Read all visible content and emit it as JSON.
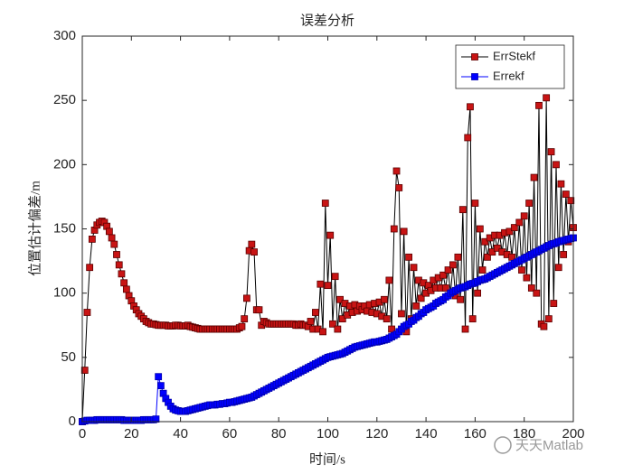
{
  "chart_data": {
    "type": "line",
    "title": "误差分析",
    "xlabel": "时间/s",
    "ylabel": "位置估计偏差/m",
    "xlim": [
      0,
      200
    ],
    "ylim": [
      0,
      300
    ],
    "xticks": [
      0,
      20,
      40,
      60,
      80,
      100,
      120,
      140,
      160,
      180,
      200
    ],
    "yticks": [
      0,
      50,
      100,
      150,
      200,
      250,
      300
    ],
    "legend": "northeast",
    "marker": "square",
    "watermark": "天天Matlab",
    "x": [
      0,
      1,
      2,
      3,
      4,
      5,
      6,
      7,
      8,
      9,
      10,
      11,
      12,
      13,
      14,
      15,
      16,
      17,
      18,
      19,
      20,
      21,
      22,
      23,
      24,
      25,
      26,
      27,
      28,
      29,
      30,
      31,
      32,
      33,
      34,
      35,
      36,
      37,
      38,
      39,
      40,
      41,
      42,
      43,
      44,
      45,
      46,
      47,
      48,
      49,
      50,
      51,
      52,
      53,
      54,
      55,
      56,
      57,
      58,
      59,
      60,
      61,
      62,
      63,
      64,
      65,
      66,
      67,
      68,
      69,
      70,
      71,
      72,
      73,
      74,
      75,
      76,
      77,
      78,
      79,
      80,
      81,
      82,
      83,
      84,
      85,
      86,
      87,
      88,
      89,
      90,
      91,
      92,
      93,
      94,
      95,
      96,
      97,
      98,
      99,
      100,
      101,
      102,
      103,
      104,
      105,
      106,
      107,
      108,
      109,
      110,
      111,
      112,
      113,
      114,
      115,
      116,
      117,
      118,
      119,
      120,
      121,
      122,
      123,
      124,
      125,
      126,
      127,
      128,
      129,
      130,
      131,
      132,
      133,
      134,
      135,
      136,
      137,
      138,
      139,
      140,
      141,
      142,
      143,
      144,
      145,
      146,
      147,
      148,
      149,
      150,
      151,
      152,
      153,
      154,
      155,
      156,
      157,
      158,
      159,
      160,
      161,
      162,
      163,
      164,
      165,
      166,
      167,
      168,
      169,
      170,
      171,
      172,
      173,
      174,
      175,
      176,
      177,
      178,
      179,
      180,
      181,
      182,
      183,
      184,
      185,
      186,
      187,
      188,
      189,
      190,
      191,
      192,
      193,
      194,
      195,
      196,
      197,
      198,
      199,
      200
    ],
    "series": [
      {
        "name": "ErrStekf",
        "color": "#c81414",
        "line_color": "#000000",
        "edge_color": "#5a0000",
        "values": [
          0,
          40,
          85,
          120,
          142,
          149,
          153,
          155,
          156,
          155,
          152,
          148,
          143,
          138,
          130,
          122,
          115,
          108,
          103,
          98,
          94,
          90,
          87,
          84,
          82,
          80,
          78,
          77,
          76,
          76,
          75.5,
          75,
          75,
          75,
          75,
          74.5,
          74.5,
          74.5,
          75,
          75,
          74.5,
          74.5,
          74.5,
          75,
          74,
          73.5,
          73,
          72.5,
          72,
          72,
          72,
          72,
          72,
          72,
          72,
          72,
          72,
          72,
          72,
          72,
          72,
          72,
          72,
          72,
          73,
          74,
          80,
          96,
          133,
          138,
          132,
          87,
          87,
          75,
          78,
          77,
          76,
          76,
          76,
          76,
          76,
          76,
          76,
          76,
          76,
          76,
          76,
          75,
          75,
          76,
          75,
          75,
          74,
          78,
          72,
          85,
          72,
          107,
          70,
          170,
          106,
          145,
          76,
          113,
          72,
          95,
          80,
          92,
          83,
          90,
          85,
          91,
          86,
          90,
          87,
          90,
          86,
          91,
          85,
          92,
          84,
          93,
          82,
          95,
          80,
          110,
          72,
          150,
          195,
          182,
          84,
          148,
          70,
          128,
          80,
          120,
          90,
          110,
          96,
          108,
          100,
          106,
          102,
          110,
          104,
          112,
          104,
          114,
          104,
          118,
          100,
          122,
          98,
          128,
          95,
          165,
          72,
          221,
          245,
          80,
          170,
          100,
          150,
          118,
          140,
          128,
          143,
          132,
          145,
          135,
          145,
          132,
          147,
          130,
          148,
          128,
          151,
          124,
          155,
          118,
          160,
          112,
          170,
          104,
          190,
          100,
          246,
          76,
          74,
          252,
          80,
          210,
          92,
          200,
          120,
          185,
          130,
          177,
          140,
          172,
          151
        ]
      },
      {
        "name": "Errekf",
        "color": "#0000ff",
        "line_color": "#0000ff",
        "edge_color": "#0000b0",
        "values": [
          0,
          0.5,
          1,
          1,
          1,
          1,
          1.5,
          1.5,
          1.5,
          1.5,
          1.5,
          1.5,
          1.5,
          1.5,
          1.5,
          1.5,
          1.5,
          1,
          1,
          1,
          1,
          1,
          1,
          1,
          1,
          1.5,
          1.5,
          1.5,
          1.5,
          1.5,
          2,
          35,
          28,
          22,
          18,
          15,
          12,
          10,
          9,
          8.5,
          8,
          8,
          8,
          8.5,
          9,
          9.5,
          10,
          10.5,
          11,
          11.5,
          12,
          12.5,
          13,
          13,
          13,
          13.5,
          13.5,
          14,
          14,
          14.5,
          15,
          15,
          15.5,
          16,
          16.5,
          17,
          17.5,
          18,
          18.5,
          19,
          20,
          21,
          22,
          23,
          24,
          25,
          26,
          27,
          28,
          29,
          30,
          31,
          32,
          33,
          34,
          35,
          36,
          37,
          38,
          39,
          40,
          41,
          42,
          43,
          44,
          45,
          46,
          47,
          48,
          49,
          50,
          50.5,
          51,
          51.5,
          52,
          52.5,
          53,
          54,
          55,
          56,
          57,
          58,
          58.5,
          59,
          59.5,
          60,
          60.5,
          61,
          61.5,
          62,
          62,
          62.5,
          63,
          63.5,
          64,
          65,
          66,
          67,
          68,
          70,
          72,
          74,
          75,
          76,
          78,
          79,
          81,
          82,
          84,
          85,
          87,
          88,
          89,
          90,
          92,
          93,
          94,
          95,
          97,
          98,
          100,
          101,
          102,
          103,
          104,
          104.5,
          105,
          106,
          107,
          107.5,
          108,
          109,
          110,
          110.5,
          111,
          112,
          113,
          114,
          115,
          116,
          117,
          118,
          119,
          120,
          121,
          122,
          123,
          124,
          125,
          126,
          127,
          128,
          129,
          130,
          131,
          132,
          133,
          134,
          135,
          136,
          137,
          138,
          138.5,
          139,
          140,
          140.5,
          141,
          141.5,
          142,
          142.5,
          143
        ]
      }
    ]
  }
}
